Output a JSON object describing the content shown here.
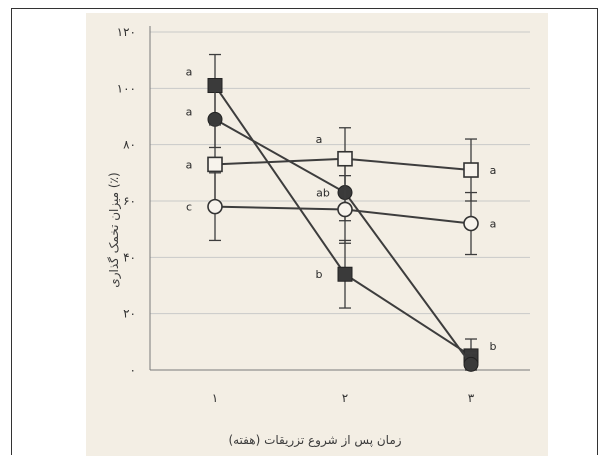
{
  "chart_data": {
    "type": "line",
    "ylabel": "میزان تخمک گذاری (٪)",
    "xlabel": "زمان پس از شروع تزریقات (هفته)",
    "x": [
      1,
      2,
      3
    ],
    "x_tick_labels": [
      "۱",
      "۲",
      "۳"
    ],
    "ylim": [
      0,
      120
    ],
    "y_ticks": [
      0,
      20,
      40,
      60,
      80,
      100,
      120
    ],
    "y_tick_labels": [
      "۰",
      "۲۰",
      "۴۰",
      "۶۰",
      "۸۰",
      "۱۰۰",
      "۱۲۰"
    ],
    "grid": true,
    "series": [
      {
        "marker": "filled-square",
        "values": [
          101,
          34,
          5
        ],
        "errors": [
          11,
          12,
          6
        ],
        "point_labels": [
          "a",
          "b",
          "b"
        ]
      },
      {
        "marker": "filled-circle",
        "values": [
          89,
          63,
          2
        ],
        "errors": [
          10,
          10,
          4
        ],
        "point_labels": [
          "a",
          "ab",
          ""
        ]
      },
      {
        "marker": "open-square",
        "values": [
          73,
          75,
          71
        ],
        "errors": [
          14,
          11,
          11
        ],
        "point_labels": [
          "a",
          "a",
          "a"
        ]
      },
      {
        "marker": "open-circle",
        "values": [
          58,
          57,
          52
        ],
        "errors": [
          12,
          12,
          11
        ],
        "point_labels": [
          "c",
          "",
          "a"
        ]
      }
    ]
  },
  "colors": {
    "line": "#3d3d3d",
    "grid": "#c9c9c9",
    "paper": "#f3eee4"
  }
}
